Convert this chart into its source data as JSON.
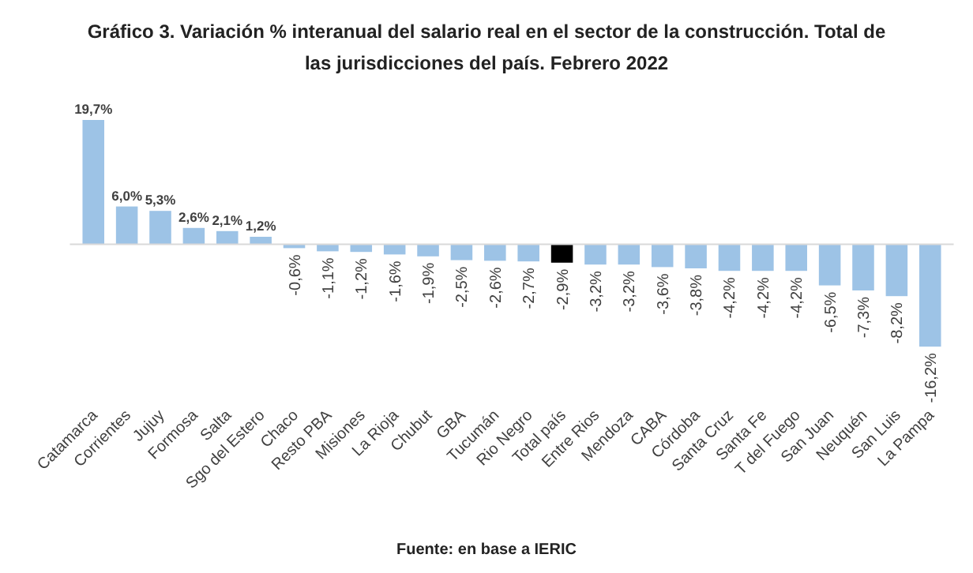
{
  "chart_data": {
    "type": "bar",
    "title": "Gráfico 3. Variación % interanual del salario real en el sector de la construcción. Total de las jurisdicciones del país. Febrero 2022",
    "categories": [
      "Catamarca",
      "Corrientes",
      "Jujuy",
      "Formosa",
      "Salta",
      "Sgo del Estero",
      "Chaco",
      "Resto PBA",
      "Misiones",
      "La Rioja",
      "Chubut",
      "GBA",
      "Tucumán",
      "Rio Negro",
      "Total país",
      "Entre Rios",
      "Mendoza",
      "CABA",
      "Córdoba",
      "Santa Cruz",
      "Santa Fe",
      "T del Fuego",
      "San Juan",
      "Neuquén",
      "San Luis",
      "La Pampa"
    ],
    "values": [
      19.7,
      6.0,
      5.3,
      2.6,
      2.1,
      1.2,
      -0.6,
      -1.1,
      -1.2,
      -1.6,
      -1.9,
      -2.5,
      -2.6,
      -2.7,
      -2.9,
      -3.2,
      -3.2,
      -3.6,
      -3.8,
      -4.2,
      -4.2,
      -4.2,
      -6.5,
      -7.3,
      -8.2,
      -16.2
    ],
    "value_labels": [
      "19,7%",
      "6,0%",
      "5,3%",
      "2,6%",
      "2,1%",
      "1,2%",
      "-0,6%",
      "-1,1%",
      "-1,2%",
      "-1,6%",
      "-1,9%",
      "-2,5%",
      "-2,6%",
      "-2,7%",
      "-2,9%",
      "-3,2%",
      "-3,2%",
      "-3,6%",
      "-3,8%",
      "-4,2%",
      "-4,2%",
      "-4,2%",
      "-6,5%",
      "-7,3%",
      "-8,2%",
      "-16,2%"
    ],
    "colors": [
      "#9dc3e6",
      "#9dc3e6",
      "#9dc3e6",
      "#9dc3e6",
      "#9dc3e6",
      "#9dc3e6",
      "#9dc3e6",
      "#9dc3e6",
      "#9dc3e6",
      "#9dc3e6",
      "#9dc3e6",
      "#9dc3e6",
      "#9dc3e6",
      "#9dc3e6",
      "#000000",
      "#9dc3e6",
      "#9dc3e6",
      "#9dc3e6",
      "#9dc3e6",
      "#9dc3e6",
      "#9dc3e6",
      "#9dc3e6",
      "#9dc3e6",
      "#9dc3e6",
      "#9dc3e6",
      "#9dc3e6"
    ],
    "annotations": [
      "Fuente: en base a IERIC"
    ]
  }
}
